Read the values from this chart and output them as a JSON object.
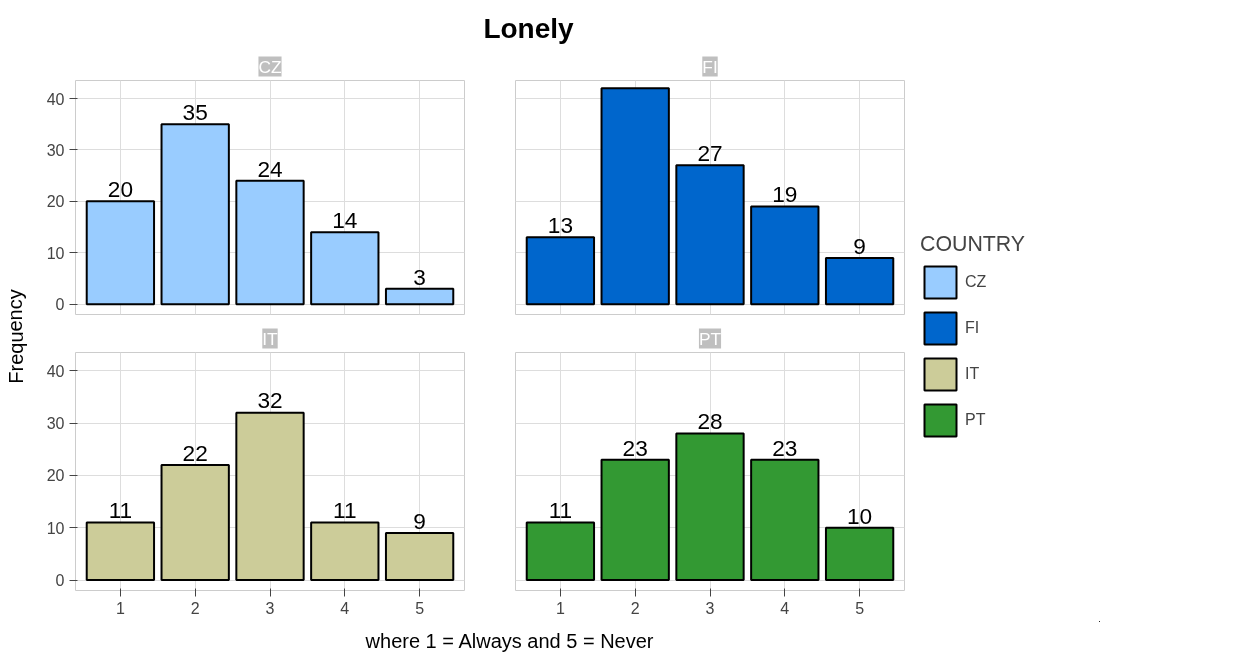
{
  "chart_data": [
    {
      "type": "bar",
      "title": "CZ",
      "annotations": [
        "Lonely"
      ],
      "ylabel": "Frequency",
      "legend_title": "COUNTRY",
      "legend": "right",
      "categories": [
        "1",
        "2",
        "3",
        "4",
        "5"
      ],
      "series": [
        {
          "name": "CZ",
          "color": "#99ccff",
          "values": [
            20,
            35,
            24,
            14,
            3
          ],
          "value_labels": [
            "20",
            "35",
            "24",
            "14",
            "3"
          ]
        }
      ],
      "ylim": [
        -2,
        43.5
      ],
      "yticks": [
        0,
        10,
        20,
        30,
        40
      ],
      "grid": true,
      "tick_labels": "y"
    },
    {
      "type": "bar",
      "title": "FI",
      "categories": [
        "1",
        "2",
        "3",
        "4",
        "5"
      ],
      "series": [
        {
          "name": "FI",
          "color": "#0066cc",
          "values": [
            13,
            42,
            27,
            19,
            9
          ],
          "value_labels": [
            "13",
            null,
            "27",
            "19",
            "9"
          ]
        }
      ],
      "ylim": [
        -2,
        43.5
      ],
      "yticks": [
        0,
        10,
        20,
        30,
        40
      ],
      "grid": true,
      "tick_labels": false
    },
    {
      "type": "bar",
      "title": "IT",
      "xlabel": "where 1 = Always and 5 = Never",
      "categories": [
        "1",
        "2",
        "3",
        "4",
        "5"
      ],
      "series": [
        {
          "name": "IT",
          "color": "#cccc99",
          "values": [
            11,
            22,
            32,
            11,
            9
          ],
          "value_labels": [
            "11",
            "22",
            "32",
            "11",
            "9"
          ]
        }
      ],
      "ylim": [
        -2,
        43.5
      ],
      "yticks": [
        0,
        10,
        20,
        30,
        40
      ],
      "grid": true
    },
    {
      "type": "bar",
      "title": "PT",
      "categories": [
        "1",
        "2",
        "3",
        "4",
        "5"
      ],
      "series": [
        {
          "name": "PT",
          "color": "#339933",
          "values": [
            11,
            23,
            28,
            23,
            10
          ],
          "value_labels": [
            "11",
            "23",
            "28",
            "23",
            "10"
          ]
        }
      ],
      "ylim": [
        -2,
        43.5
      ],
      "yticks": [
        0,
        10,
        20,
        30,
        40
      ],
      "grid": true,
      "tick_labels": "x"
    }
  ]
}
